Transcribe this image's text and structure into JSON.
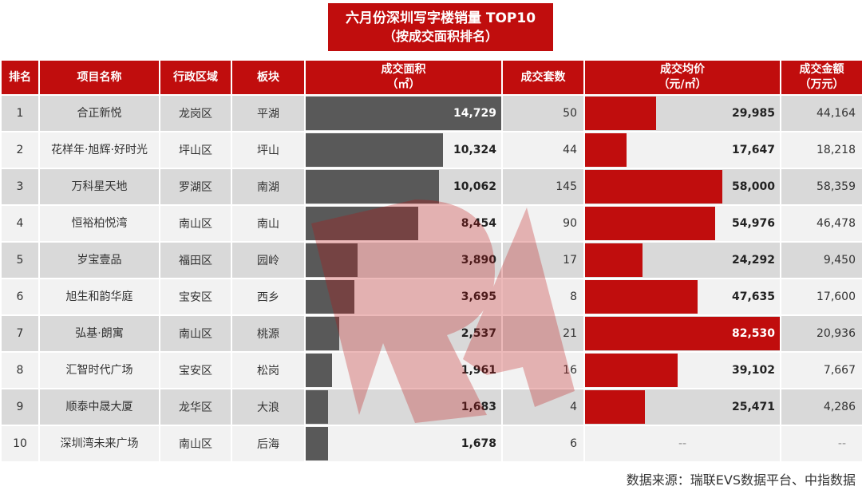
{
  "title": {
    "line1": "六月份深圳写字楼销量 TOP10",
    "line2": "（按成交面积排名）"
  },
  "headers": {
    "rank": "排名",
    "name": "项目名称",
    "district": "行政区域",
    "block": "板块",
    "area": "成交面积",
    "area_unit": "（㎡）",
    "units": "成交套数",
    "price": "成交均价",
    "price_unit": "（元/㎡）",
    "amount": "成交金额",
    "amount_unit": "（万元）"
  },
  "rows": [
    {
      "rank": "1",
      "name": "合正新悦",
      "district": "龙岗区",
      "block": "平湖",
      "area": "14,729",
      "units": "50",
      "price": "29,985",
      "amount": "44,164"
    },
    {
      "rank": "2",
      "name": "花样年·旭辉·好时光",
      "district": "坪山区",
      "block": "坪山",
      "area": "10,324",
      "units": "44",
      "price": "17,647",
      "amount": "18,218"
    },
    {
      "rank": "3",
      "name": "万科星天地",
      "district": "罗湖区",
      "block": "南湖",
      "area": "10,062",
      "units": "145",
      "price": "58,000",
      "amount": "58,359"
    },
    {
      "rank": "4",
      "name": "恒裕柏悦湾",
      "district": "南山区",
      "block": "南山",
      "area": "8,454",
      "units": "90",
      "price": "54,976",
      "amount": "46,478"
    },
    {
      "rank": "5",
      "name": "岁宝壹品",
      "district": "福田区",
      "block": "园岭",
      "area": "3,890",
      "units": "17",
      "price": "24,292",
      "amount": "9,450"
    },
    {
      "rank": "6",
      "name": "旭生和韵华庭",
      "district": "宝安区",
      "block": "西乡",
      "area": "3,695",
      "units": "8",
      "price": "47,635",
      "amount": "17,600"
    },
    {
      "rank": "7",
      "name": "弘基·朗寓",
      "district": "南山区",
      "block": "桃源",
      "area": "2,537",
      "units": "21",
      "price": "82,530",
      "amount": "20,936"
    },
    {
      "rank": "8",
      "name": "汇智时代广场",
      "district": "宝安区",
      "block": "松岗",
      "area": "1,961",
      "units": "16",
      "price": "39,102",
      "amount": "7,667"
    },
    {
      "rank": "9",
      "name": "顺泰中晟大厦",
      "district": "龙华区",
      "block": "大浪",
      "area": "1,683",
      "units": "4",
      "price": "25,471",
      "amount": "4,286"
    },
    {
      "rank": "10",
      "name": "深圳湾未来广场",
      "district": "南山区",
      "block": "后海",
      "area": "1,678",
      "units": "6",
      "price": "--",
      "amount": "--"
    }
  ],
  "source": "数据来源：瑞联EVS数据平台、中指数据",
  "colors": {
    "accent": "#c00d0d",
    "area_bar": "#595959",
    "row_odd": "#d9d9d9",
    "row_even": "#f2f2f2"
  },
  "chart_data": {
    "type": "table",
    "title": "六月份深圳写字楼销量 TOP10（按成交面积排名）",
    "columns": [
      "排名",
      "项目名称",
      "行政区域",
      "板块",
      "成交面积(㎡)",
      "成交套数",
      "成交均价(元/㎡)",
      "成交金额(万元)"
    ],
    "categories": [
      "合正新悦",
      "花样年·旭辉·好时光",
      "万科星天地",
      "恒裕柏悦湾",
      "岁宝壹品",
      "旭生和韵华庭",
      "弘基·朗寓",
      "汇智时代广场",
      "顺泰中晟大厦",
      "深圳湾未来广场"
    ],
    "series": [
      {
        "name": "成交面积(㎡)",
        "values": [
          14729,
          10324,
          10062,
          8454,
          3890,
          3695,
          2537,
          1961,
          1683,
          1678
        ]
      },
      {
        "name": "成交套数",
        "values": [
          50,
          44,
          145,
          90,
          17,
          8,
          21,
          16,
          4,
          6
        ]
      },
      {
        "name": "成交均价(元/㎡)",
        "values": [
          29985,
          17647,
          58000,
          54976,
          24292,
          47635,
          82530,
          39102,
          25471,
          null
        ]
      },
      {
        "name": "成交金额(万元)",
        "values": [
          44164,
          18218,
          58359,
          46478,
          9450,
          17600,
          20936,
          7667,
          4286,
          null
        ]
      }
    ],
    "bar_columns": [
      "成交面积(㎡)",
      "成交均价(元/㎡)"
    ],
    "note": "数据来源：瑞联EVS数据平台、中指数据"
  }
}
